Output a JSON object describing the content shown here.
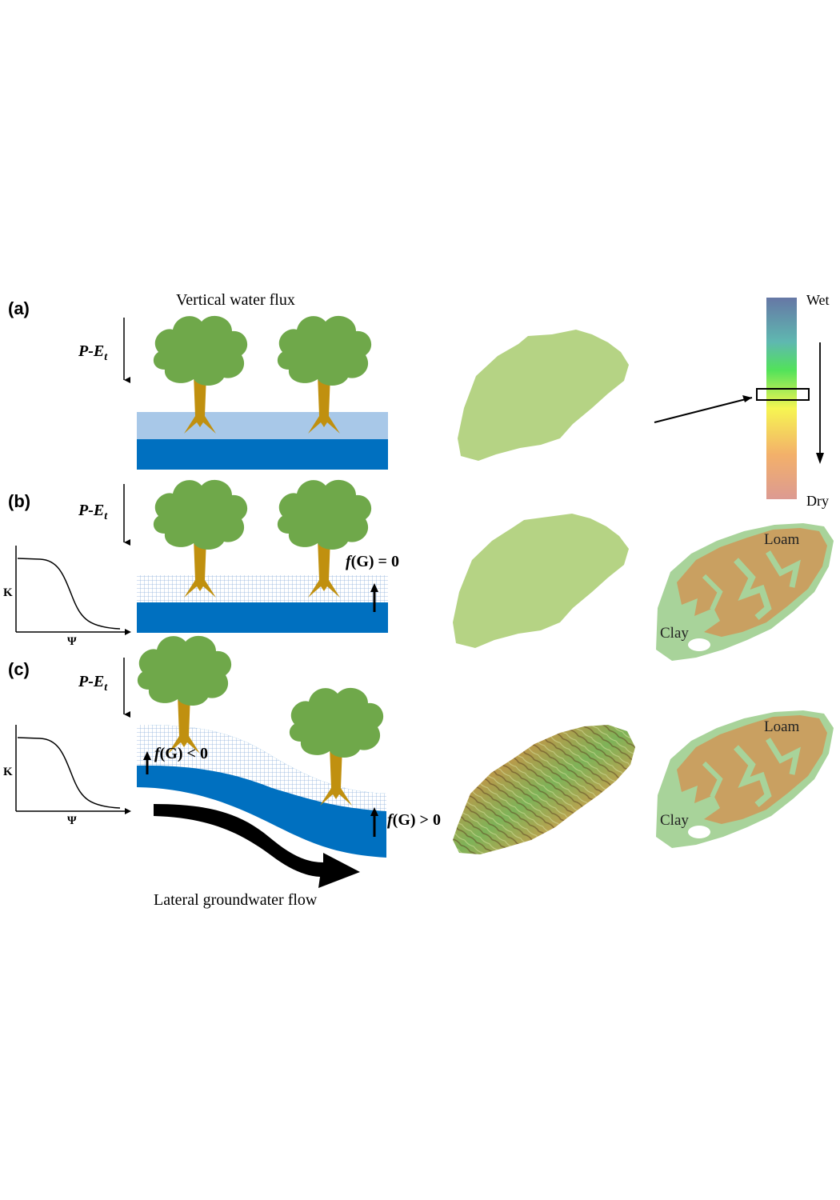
{
  "panels": {
    "a": {
      "label": "(a)",
      "title": "Vertical water flux",
      "flux_main": "P-E",
      "flux_sub": "t"
    },
    "b": {
      "label": "(b)",
      "flux_main": "P-E",
      "flux_sub": "t",
      "fg_prefix": "f",
      "fg_text": "(G) = 0",
      "axis_y": "K",
      "axis_x": "Ψ"
    },
    "c": {
      "label": "(c)",
      "flux_main": "P-E",
      "flux_sub": "t",
      "fg_left_prefix": "f",
      "fg_left_text": "(G) < 0",
      "fg_right_prefix": "f",
      "fg_right_text": "(G) > 0",
      "axis_y": "K",
      "axis_x": "Ψ",
      "bottom_caption": "Lateral groundwater flow"
    }
  },
  "colorbar": {
    "top_label": "Wet",
    "bottom_label": "Dry"
  },
  "soil_maps": {
    "loam_label": "Loam",
    "clay_label": "Clay"
  },
  "colors": {
    "tree_canopy": "#6fa84a",
    "tree_trunk": "#c0900f",
    "unsaturated_light": "#a8c8e8",
    "saturated": "#0070c0",
    "catchment_uniform": "#b5d384",
    "loam": "#c9a061",
    "clay": "#a8d39a"
  }
}
